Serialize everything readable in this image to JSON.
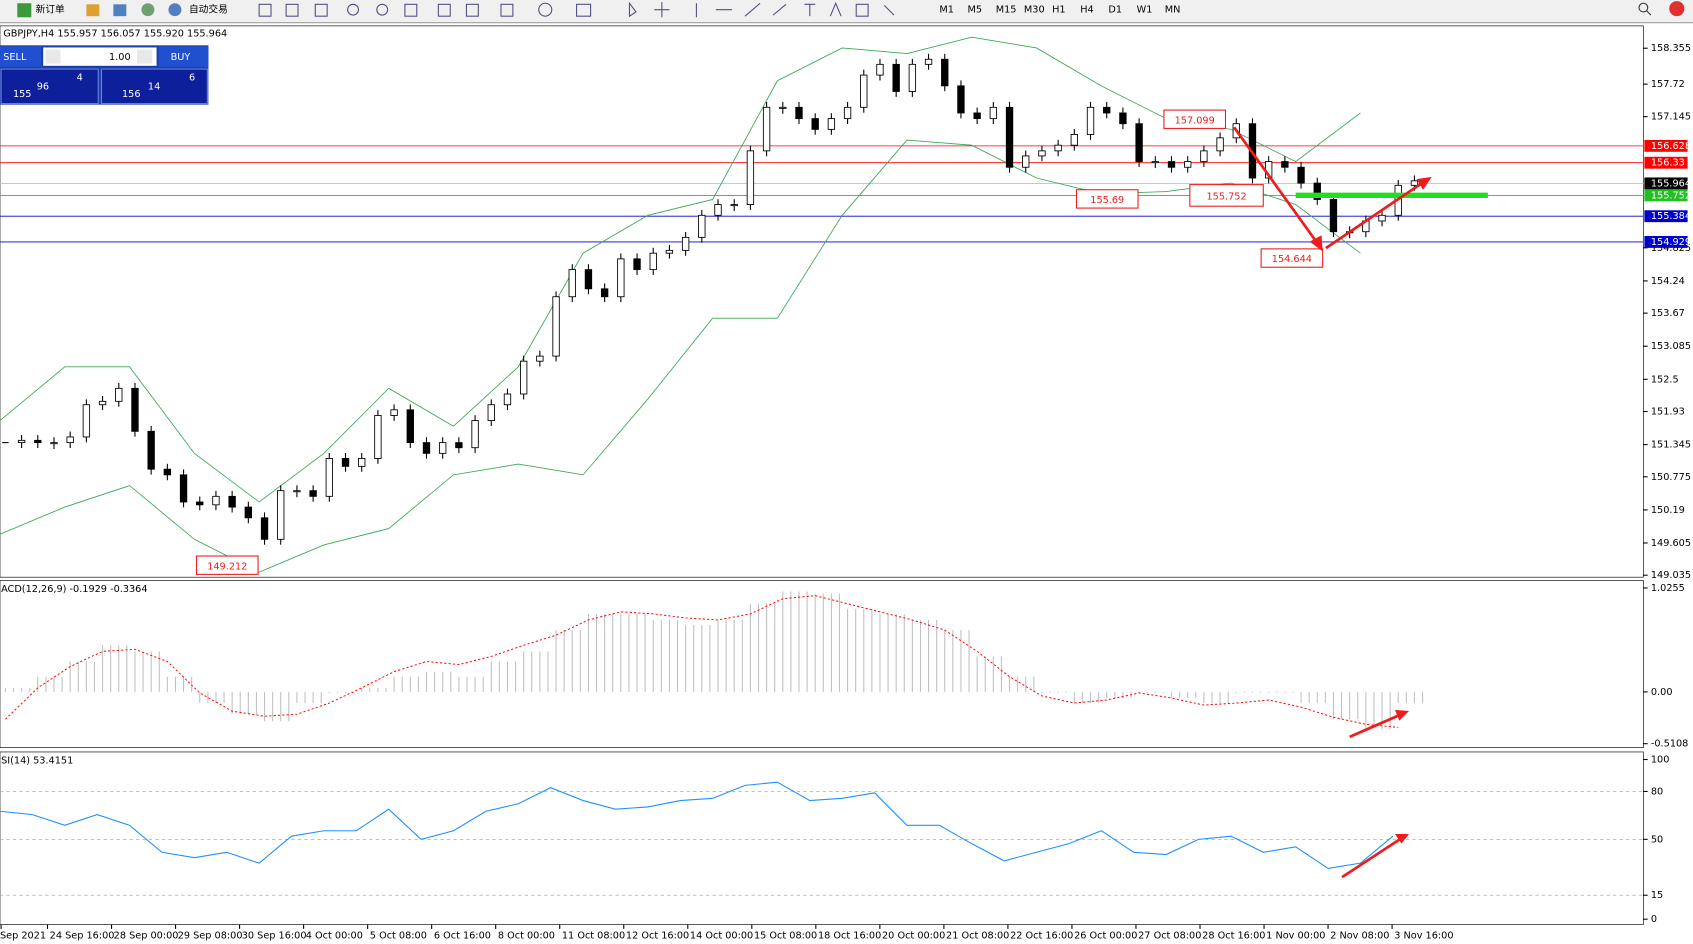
{
  "toolbar": {
    "new_order": "新订单",
    "auto_trading": "自动交易",
    "timeframes": [
      "M1",
      "M5",
      "M15",
      "M30",
      "H1",
      "H4",
      "D1",
      "W1",
      "MN"
    ]
  },
  "trade_panel": {
    "sell": "SELL",
    "lots": "1.00",
    "buy": "BUY",
    "bid_big": "155",
    "bid_pips": "96",
    "bid_frac": "4",
    "ask_big": "156",
    "ask_pips": "14",
    "ask_frac": "6"
  },
  "chart_data": [
    {
      "type": "candlestick",
      "title": "GBPJPY,H4 155.957 156.057 155.920 155.964",
      "close": [
        151.38,
        151.42,
        151.38,
        151.38,
        151.48,
        152.05,
        152.11,
        152.34,
        151.58,
        150.91,
        150.81,
        150.33,
        150.28,
        150.43,
        150.24,
        150.05,
        149.67,
        150.53,
        150.53,
        150.43,
        151.1,
        150.96,
        151.1,
        151.86,
        151.96,
        151.38,
        151.19,
        151.38,
        151.29,
        151.77,
        152.05,
        152.24,
        152.82,
        152.91,
        153.96,
        154.44,
        154.1,
        153.96,
        154.63,
        154.44,
        154.73,
        154.78,
        155.01,
        155.4,
        155.59,
        155.59,
        156.54,
        157.31,
        157.31,
        157.11,
        156.92,
        157.11,
        157.31,
        157.88,
        158.07,
        157.59,
        158.07,
        158.16,
        157.69,
        157.21,
        157.11,
        157.31,
        156.25,
        156.45,
        156.54,
        156.64,
        156.83,
        157.31,
        157.21,
        157.02,
        156.35,
        156.35,
        156.25,
        156.35,
        156.54,
        156.77,
        157.02,
        156.06,
        156.35,
        156.25,
        155.97,
        155.68,
        155.11,
        155.11,
        155.3,
        155.4,
        155.93,
        156.01
      ],
      "upper_band": [
        151.77,
        152.72,
        152.72,
        151.19,
        150.33,
        151.19,
        152.34,
        151.67,
        152.72,
        154.73,
        155.4,
        155.68,
        157.78,
        158.36,
        158.26,
        158.55,
        158.36,
        157.69,
        157.11,
        156.92,
        156.35,
        157.21
      ],
      "lower_band": [
        149.76,
        150.24,
        150.62,
        149.67,
        149.09,
        149.57,
        149.86,
        150.81,
        151.0,
        150.81,
        152.15,
        153.58,
        153.58,
        155.4,
        156.73,
        156.64,
        156.06,
        155.78,
        155.82,
        155.97,
        155.59,
        154.73
      ],
      "band_color": "#3aa856",
      "ylim": [
        149.0,
        158.75
      ],
      "yticks": [
        158.355,
        157.72,
        157.145,
        154.825,
        154.24,
        153.67,
        153.085,
        152.5,
        151.93,
        151.345,
        150.775,
        150.19,
        149.605,
        149.035
      ],
      "price_levels": [
        {
          "value": 156.628,
          "color": "#ff0000",
          "line_color": "#ff0000"
        },
        {
          "value": 156.33,
          "color": "#ff0000",
          "line_color": "#ff0000"
        },
        {
          "value": 155.964,
          "color": "#000000",
          "line_color": "#c0c0c0"
        },
        {
          "value": 155.752,
          "color": "#22c022",
          "line_color": "#22c022"
        },
        {
          "value": 155.384,
          "color": "#0000cc",
          "line_color": "#0000cc"
        },
        {
          "value": 154.929,
          "color": "#0000cc",
          "line_color": "#0000cc"
        }
      ],
      "annotations": [
        157.099,
        155.69,
        155.752,
        154.644,
        149.212
      ],
      "x_labels": [
        "Sep 2021",
        "24 Sep 16:00",
        "28 Sep 00:00",
        "29 Sep 08:00",
        "30 Sep 16:00",
        "4 Oct 00:00",
        "5 Oct 08:00",
        "6 Oct 16:00",
        "8 Oct 00:00",
        "11 Oct 08:00",
        "12 Oct 16:00",
        "14 Oct 00:00",
        "15 Oct 08:00",
        "18 Oct 16:00",
        "20 Oct 00:00",
        "21 Oct 08:00",
        "22 Oct 16:00",
        "26 Oct 00:00",
        "27 Oct 08:00",
        "28 Oct 16:00",
        "1 Nov 00:00",
        "2 Nov 08:00",
        "3 Nov 16:00"
      ]
    },
    {
      "type": "macd",
      "title": "ACD(12,26,9) -0.1929 -0.3364",
      "histogram": [
        0.04,
        0.15,
        0.3,
        0.46,
        0.4,
        0.15,
        -0.11,
        -0.22,
        -0.29,
        -0.11,
        -0.01,
        0.04,
        0.15,
        0.2,
        0.15,
        0.3,
        0.4,
        0.61,
        0.77,
        0.77,
        0.71,
        0.66,
        0.71,
        0.87,
        0.99,
        0.97,
        0.82,
        0.77,
        0.71,
        0.61,
        0.35,
        0.15,
        -0.01,
        -0.11,
        -0.06,
        -0.01,
        -0.06,
        -0.11,
        -0.01,
        -0.01,
        -0.11,
        -0.27,
        -0.37,
        -0.11
      ],
      "signal": [
        -0.27,
        0.04,
        0.25,
        0.4,
        0.42,
        0.3,
        -0.01,
        -0.19,
        -0.24,
        -0.22,
        -0.11,
        0.04,
        0.2,
        0.3,
        0.27,
        0.35,
        0.46,
        0.56,
        0.71,
        0.79,
        0.77,
        0.73,
        0.71,
        0.77,
        0.92,
        0.95,
        0.87,
        0.79,
        0.71,
        0.61,
        0.4,
        0.15,
        -0.04,
        -0.11,
        -0.08,
        -0.01,
        -0.06,
        -0.13,
        -0.11,
        -0.08,
        -0.15,
        -0.25,
        -0.32,
        -0.35
      ],
      "color": "#c0c0c0",
      "signal_color": "#ff0000",
      "ylim": [
        -0.55,
        1.1
      ],
      "yticks": [
        1.0255,
        {
          "value": 0,
          "label": "0.00"
        },
        -0.5108
      ]
    },
    {
      "type": "rsi",
      "title": "SI(14) 53.4151",
      "values": [
        67.6,
        65.5,
        58.8,
        65.5,
        58.8,
        41.9,
        38.5,
        41.9,
        35.1,
        52.0,
        55.4,
        55.4,
        68.9,
        50.0,
        55.4,
        67.6,
        72.3,
        82.4,
        74.3,
        68.9,
        70.3,
        74.3,
        75.7,
        83.8,
        85.8,
        74.3,
        75.7,
        79.1,
        58.8,
        58.8,
        47.3,
        36.5,
        41.9,
        47.3,
        55.4,
        41.9,
        40.5,
        50.0,
        52.0,
        41.9,
        45.3,
        31.8,
        35.1,
        52.0
      ],
      "color": "#1e90ff",
      "ylim": [
        0,
        100
      ],
      "yticks": [
        100,
        80,
        50,
        15,
        0
      ]
    }
  ]
}
